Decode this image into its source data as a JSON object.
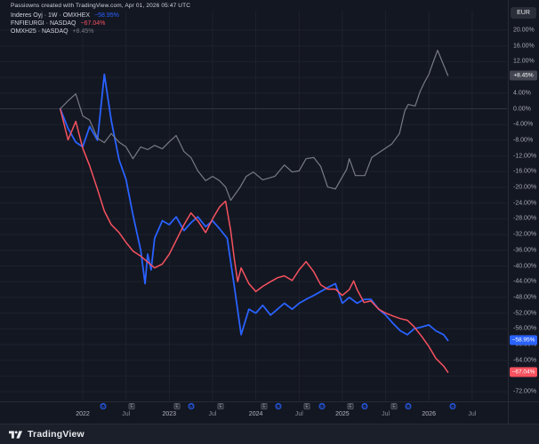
{
  "header": {
    "attribution": "Passiowns created with TradingView.com, Apr 01, 2026 05:47 UTC"
  },
  "legend": {
    "rows": [
      {
        "title": "Inderes Oyj · 1W · OMXHEX",
        "value": "−58.95%"
      },
      {
        "title": "FNFIEURGI · NASDAQ",
        "value": "−67.04%"
      },
      {
        "title": "OMXH25 · NASDAQ",
        "value": "+8.45%"
      }
    ]
  },
  "price_axis": {
    "currency_label": "EUR"
  },
  "footer": {
    "brand": "TradingView"
  },
  "colors": {
    "background": "#131722",
    "grid": "#1e222d",
    "zero_line": "#2e3442",
    "separator": "#262b38",
    "axis_text": "#a5a8b1",
    "blue": "#2962ff",
    "red": "#f7525f",
    "gray": "#787b86"
  },
  "chart_data": {
    "type": "line",
    "x_unit": "decimal_year",
    "xlim": [
      2021.044,
      2026.902
    ],
    "ylim": [
      -74.46,
      24.97
    ],
    "grid": true,
    "legend_position": "top-left",
    "y_ticks": [
      20,
      16,
      12,
      8,
      4,
      0,
      -4,
      -8,
      -12,
      -16,
      -20,
      -24,
      -28,
      -32,
      -36,
      -40,
      -44,
      -48,
      -52,
      -56,
      -60,
      -64,
      -68,
      -72
    ],
    "y_tick_suffix": "%",
    "x_ticks": [
      {
        "label": "2022",
        "x": 2022.0,
        "major": true
      },
      {
        "label": "Jul",
        "x": 2022.5,
        "major": false
      },
      {
        "label": "2023",
        "x": 2023.0,
        "major": true
      },
      {
        "label": "Jul",
        "x": 2023.5,
        "major": false
      },
      {
        "label": "2024",
        "x": 2024.0,
        "major": true
      },
      {
        "label": "Jul",
        "x": 2024.5,
        "major": false
      },
      {
        "label": "2025",
        "x": 2025.0,
        "major": true
      },
      {
        "label": "Jul",
        "x": 2025.5,
        "major": false
      },
      {
        "label": "2026",
        "x": 2026.0,
        "major": true
      },
      {
        "label": "Jul",
        "x": 2026.5,
        "major": false
      }
    ],
    "event_markers": [
      {
        "type": "D",
        "x": 2022.236
      },
      {
        "type": "E",
        "x": 2022.565
      },
      {
        "type": "E",
        "x": 2023.089
      },
      {
        "type": "D",
        "x": 2023.254
      },
      {
        "type": "E",
        "x": 2023.593
      },
      {
        "type": "E",
        "x": 2024.097
      },
      {
        "type": "D",
        "x": 2024.261
      },
      {
        "type": "E",
        "x": 2024.59
      },
      {
        "type": "D",
        "x": 2024.765
      },
      {
        "type": "E",
        "x": 2025.094
      },
      {
        "type": "D",
        "x": 2025.258
      },
      {
        "type": "E",
        "x": 2025.597
      },
      {
        "type": "D",
        "x": 2025.762
      },
      {
        "type": "D",
        "x": 2026.276
      }
    ],
    "series": [
      {
        "name": "Inderes Oyj · 1W · OMXHEX",
        "color": "#2962ff",
        "width": 1.8,
        "last_value_label": "−58.95%",
        "badge_bg": "#2962ff",
        "x": [
          2021.74,
          2021.83,
          2021.92,
          2022.0,
          2022.08,
          2022.17,
          2022.25,
          2022.33,
          2022.42,
          2022.5,
          2022.58,
          2022.67,
          2022.72,
          2022.75,
          2022.79,
          2022.83,
          2022.92,
          2023.0,
          2023.08,
          2023.17,
          2023.25,
          2023.33,
          2023.42,
          2023.5,
          2023.58,
          2023.67,
          2023.75,
          2023.83,
          2023.92,
          2024.0,
          2024.08,
          2024.17,
          2024.25,
          2024.33,
          2024.42,
          2024.5,
          2024.58,
          2024.67,
          2024.75,
          2024.83,
          2024.92,
          2025.0,
          2025.08,
          2025.17,
          2025.25,
          2025.33,
          2025.42,
          2025.5,
          2025.58,
          2025.67,
          2025.75,
          2025.83,
          2025.92,
          2026.0,
          2026.08,
          2026.17,
          2026.22
        ],
        "y": [
          0,
          -5,
          -8.5,
          -9.7,
          -4.5,
          -8,
          8.8,
          -3,
          -13,
          -18,
          -27,
          -36,
          -44.5,
          -37,
          -41,
          -33,
          -28.5,
          -29.5,
          -27.5,
          -31,
          -29,
          -27.5,
          -30,
          -28.5,
          -30.5,
          -33,
          -45,
          -57.5,
          -51,
          -52,
          -50,
          -52.5,
          -51,
          -49.5,
          -51,
          -49.5,
          -48.5,
          -47.5,
          -46.5,
          -45.5,
          -44.5,
          -49.5,
          -48,
          -49.5,
          -48.5,
          -48.5,
          -51,
          -52.5,
          -54.5,
          -56.5,
          -57.5,
          -56,
          -55.5,
          -55,
          -56.5,
          -57.5,
          -58.95
        ]
      },
      {
        "name": "FNFIEURGI · NASDAQ",
        "color": "#f7525f",
        "width": 1.5,
        "last_value_label": "−67.04%",
        "badge_bg": "#f7525f",
        "x": [
          2021.74,
          2021.83,
          2021.92,
          2022.0,
          2022.08,
          2022.17,
          2022.25,
          2022.33,
          2022.42,
          2022.5,
          2022.58,
          2022.67,
          2022.75,
          2022.83,
          2022.92,
          2023.0,
          2023.08,
          2023.17,
          2023.25,
          2023.33,
          2023.42,
          2023.5,
          2023.58,
          2023.65,
          2023.71,
          2023.75,
          2023.79,
          2023.83,
          2023.92,
          2024.0,
          2024.08,
          2024.17,
          2024.25,
          2024.33,
          2024.42,
          2024.5,
          2024.58,
          2024.67,
          2024.75,
          2024.83,
          2024.92,
          2025.0,
          2025.08,
          2025.13,
          2025.17,
          2025.25,
          2025.33,
          2025.42,
          2025.5,
          2025.58,
          2025.67,
          2025.75,
          2025.83,
          2025.92,
          2026.0,
          2026.08,
          2026.17,
          2026.22
        ],
        "y": [
          0,
          -7.9,
          -3.2,
          -10,
          -14.5,
          -20.5,
          -26,
          -29.5,
          -31.5,
          -34,
          -36.2,
          -37.5,
          -39,
          -40.5,
          -39.5,
          -37,
          -33.5,
          -29.5,
          -26.5,
          -28.5,
          -31.5,
          -28,
          -25,
          -23.5,
          -31,
          -38,
          -44,
          -40.5,
          -44.5,
          -46.5,
          -45.2,
          -44,
          -43,
          -42.5,
          -43.7,
          -41,
          -38.9,
          -41.5,
          -44.8,
          -45.9,
          -45.9,
          -47.5,
          -46,
          -43.8,
          -46,
          -49.3,
          -48.9,
          -51,
          -52,
          -52.7,
          -53.4,
          -53.8,
          -55.5,
          -58,
          -60.5,
          -63.5,
          -65.5,
          -67.04
        ]
      },
      {
        "name": "OMXH25 · NASDAQ",
        "color": "#787b86",
        "width": 1.2,
        "last_value_label": "+8.45%",
        "badge_bg": "#434651",
        "x": [
          2021.74,
          2021.83,
          2021.92,
          2022.0,
          2022.08,
          2022.17,
          2022.25,
          2022.33,
          2022.42,
          2022.5,
          2022.58,
          2022.67,
          2022.75,
          2022.83,
          2022.92,
          2023.0,
          2023.08,
          2023.17,
          2023.25,
          2023.33,
          2023.42,
          2023.5,
          2023.58,
          2023.65,
          2023.71,
          2023.82,
          2023.89,
          2023.97,
          2024.08,
          2024.22,
          2024.33,
          2024.42,
          2024.5,
          2024.58,
          2024.67,
          2024.75,
          2024.83,
          2024.92,
          2025.05,
          2025.08,
          2025.15,
          2025.26,
          2025.34,
          2025.44,
          2025.57,
          2025.66,
          2025.72,
          2025.76,
          2025.84,
          2025.9,
          2025.95,
          2026.0,
          2026.04,
          2026.1,
          2026.22
        ],
        "y": [
          0,
          2,
          3.8,
          -1.8,
          -2.9,
          -7.5,
          -8.6,
          -6.3,
          -8.5,
          -9.7,
          -12.7,
          -9.7,
          -10.4,
          -9.3,
          -10.2,
          -8.4,
          -6.8,
          -10.9,
          -12.4,
          -15.8,
          -18.3,
          -17.2,
          -18.3,
          -19.9,
          -23.3,
          -19.9,
          -17.2,
          -16.1,
          -18.1,
          -17.2,
          -14.3,
          -16.1,
          -15.8,
          -12.7,
          -12.4,
          -14.7,
          -19.9,
          -20.4,
          -15.4,
          -12.7,
          -17.0,
          -17.0,
          -12.4,
          -10.9,
          -9.0,
          -6.3,
          -0.6,
          1.1,
          0.7,
          4.5,
          6.8,
          8.8,
          11.3,
          14.9,
          8.45
        ]
      }
    ]
  }
}
